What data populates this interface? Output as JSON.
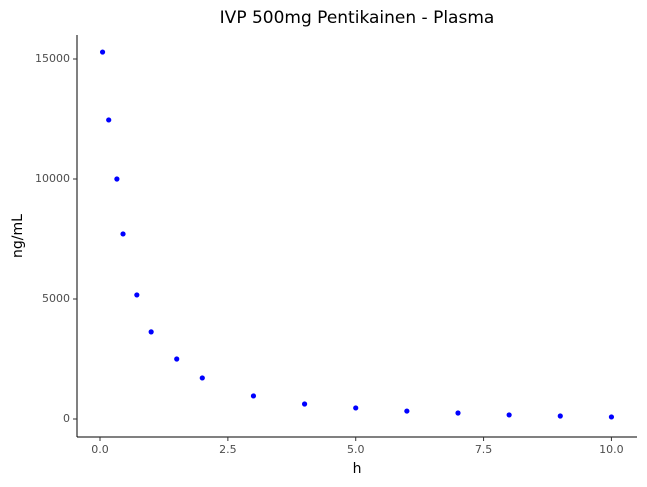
{
  "chart_data": {
    "type": "scatter",
    "title": "IVP 500mg Pentikainen - Plasma",
    "x_label": "h",
    "y_label": "ng/mL",
    "x": [
      0.05,
      0.17,
      0.33,
      0.45,
      0.72,
      1,
      1.5,
      2,
      3,
      4,
      5,
      6,
      7,
      8,
      9,
      10
    ],
    "values": [
      15290,
      12460,
      10000,
      7710,
      5170,
      3630,
      2500,
      1710,
      960,
      625,
      460,
      330,
      250,
      170,
      125,
      85
    ],
    "color": "#0000ff",
    "xlim": [
      -0.45,
      10.5
    ],
    "ylim": [
      -750,
      16000
    ],
    "xticks": [
      {
        "value": 0,
        "label": "0.0"
      },
      2.5,
      {
        "value": 5,
        "label": "5.0"
      },
      7.5,
      {
        "value": 10,
        "label": "10.0"
      }
    ],
    "yticks": [
      0,
      5000,
      10000,
      15000
    ]
  }
}
